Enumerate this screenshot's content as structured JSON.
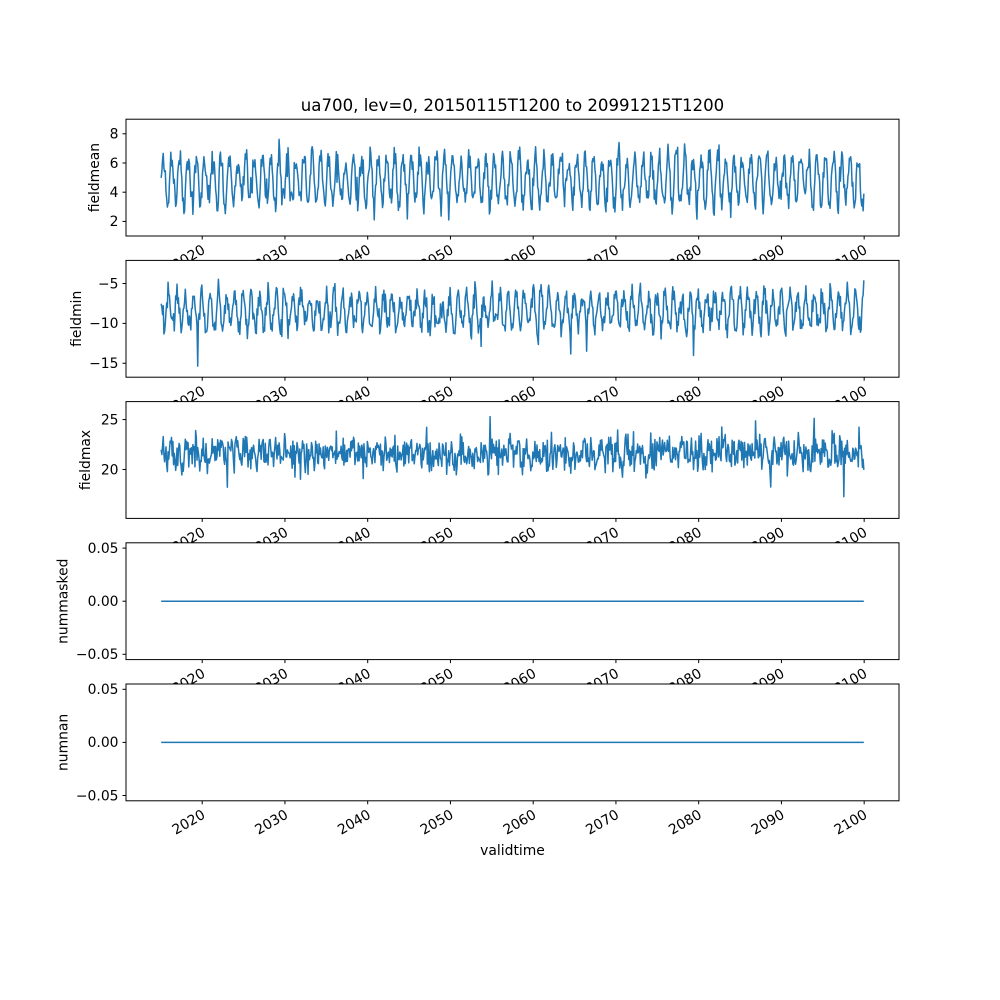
{
  "figure": {
    "title": "ua700, lev=0, 20150115T1200 to 20991215T1200",
    "xlabel": "validtime",
    "background": "#ffffff",
    "line_color": "#1f77b4",
    "axis_color": "#000000",
    "font_color": "#000000"
  },
  "chart_data": {
    "type": "line",
    "title": "ua700, lev=0, 20150115T1200 to 20991215T1200",
    "xlabel": "validtime",
    "layout": {
      "stacked_subplots": 5,
      "shared_x": true,
      "grid": false,
      "legend": false,
      "x_tick_rotation_deg": 30
    },
    "x_axis": {
      "start": 2015.04,
      "end": 2099.96,
      "n_points": 1020,
      "xlim": [
        2010.79,
        2104.21
      ],
      "ticks": [
        {
          "value": 2020,
          "label": "2020"
        },
        {
          "value": 2030,
          "label": "2030"
        },
        {
          "value": 2040,
          "label": "2040"
        },
        {
          "value": 2050,
          "label": "2050"
        },
        {
          "value": 2060,
          "label": "2060"
        },
        {
          "value": 2070,
          "label": "2070"
        },
        {
          "value": 2080,
          "label": "2080"
        },
        {
          "value": 2090,
          "label": "2090"
        },
        {
          "value": 2100,
          "label": "2100"
        }
      ]
    },
    "subplots": [
      {
        "name": "fieldmean",
        "ylabel": "fieldmean",
        "ylim": [
          1.0,
          9.0
        ],
        "yticks": [
          {
            "value": 2,
            "label": "2"
          },
          {
            "value": 4,
            "label": "4"
          },
          {
            "value": 6,
            "label": "6"
          },
          {
            "value": 8,
            "label": "8"
          }
        ],
        "series": {
          "pattern": "seasonal_noise",
          "mean": 4.85,
          "seasonal_amplitude": 1.55,
          "amplitude_jitter": 0.6,
          "noise_amplitude": 0.95,
          "period_points": 12,
          "phase": 0,
          "spike_probability": 0.02,
          "spike_amplitude": 1.4,
          "spike_direction": "both",
          "min": 1.55,
          "max": 8.7,
          "seed": 11
        }
      },
      {
        "name": "fieldmin",
        "ylabel": "fieldmin",
        "ylim": [
          -16.75,
          -2.1
        ],
        "yticks": [
          {
            "value": -5,
            "label": "−5"
          },
          {
            "value": -10,
            "label": "−10"
          },
          {
            "value": -15,
            "label": "−15"
          }
        ],
        "series": {
          "pattern": "seasonal_noise",
          "mean": -8.4,
          "seasonal_amplitude": 2.1,
          "amplitude_jitter": 0.6,
          "noise_amplitude": 1.7,
          "period_points": 12,
          "phase": 2.1,
          "spike_probability": 0.012,
          "spike_amplitude": 3.6,
          "spike_direction": "down",
          "min": -16.2,
          "max": -3.4,
          "seed": 23
        }
      },
      {
        "name": "fieldmax",
        "ylabel": "fieldmax",
        "ylim": [
          15.1,
          26.8
        ],
        "yticks": [
          {
            "value": 20,
            "label": "20"
          },
          {
            "value": 25,
            "label": "25"
          }
        ],
        "series": {
          "pattern": "seasonal_noise",
          "mean": 21.6,
          "seasonal_amplitude": 0.5,
          "amplitude_jitter": 0.6,
          "noise_amplitude": 2.05,
          "period_points": 12,
          "phase": 0.7,
          "spike_probability": 0.025,
          "spike_amplitude": 3.0,
          "spike_direction": "both",
          "min": 15.8,
          "max": 26.4,
          "seed": 37
        }
      },
      {
        "name": "nummasked",
        "ylabel": "nummasked",
        "ylim": [
          -0.055,
          0.055
        ],
        "yticks": [
          {
            "value": 0.05,
            "label": "0.05"
          },
          {
            "value": 0.0,
            "label": "0.00"
          },
          {
            "value": -0.05,
            "label": "−0.05"
          }
        ],
        "series": {
          "pattern": "constant",
          "value": 0.0
        }
      },
      {
        "name": "numnan",
        "ylabel": "numnan",
        "ylim": [
          -0.055,
          0.055
        ],
        "yticks": [
          {
            "value": 0.05,
            "label": "0.05"
          },
          {
            "value": 0.0,
            "label": "0.00"
          },
          {
            "value": -0.05,
            "label": "−0.05"
          }
        ],
        "series": {
          "pattern": "constant",
          "value": 0.0
        }
      }
    ]
  }
}
